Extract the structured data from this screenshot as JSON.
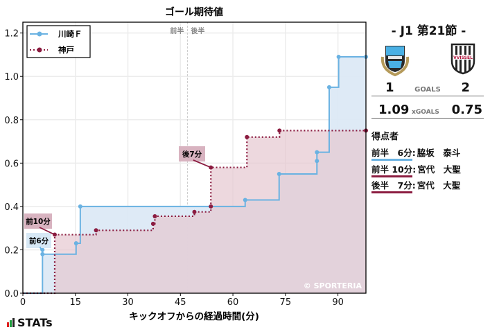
{
  "chart_data": {
    "type": "line",
    "subtype": "step",
    "title": "ゴール期待値",
    "xlabel": "キックオフからの経過時間(分)",
    "ylabel": "",
    "xlim": [
      0,
      98
    ],
    "ylim": [
      0,
      1.25
    ],
    "xticks": [
      0,
      15,
      30,
      45,
      60,
      75,
      90
    ],
    "yticks": [
      0.0,
      0.2,
      0.4,
      0.6,
      0.8,
      1.0,
      1.2
    ],
    "xtick_labels": [
      "0",
      "15",
      "30",
      "45",
      "60",
      "75",
      "90"
    ],
    "ytick_labels": [
      "0.0",
      "0.2",
      "0.4",
      "0.6",
      "0.8",
      "1.0",
      "1.2"
    ],
    "grid": true,
    "halftime_marker": {
      "x": 47,
      "left_label": "前半",
      "right_label": "後半"
    },
    "legend": {
      "position": "upper left",
      "entries": [
        "川崎Ｆ",
        "神戸"
      ]
    },
    "series": [
      {
        "name": "川崎Ｆ",
        "color": "#6ab2e2",
        "fill": "#dce9f6",
        "linestyle": "solid",
        "points": [
          [
            0,
            0
          ],
          [
            5.6,
            0.2
          ],
          [
            5.6,
            0.18
          ],
          [
            15.2,
            0.23
          ],
          [
            16.4,
            0.4
          ],
          [
            63.5,
            0.43
          ],
          [
            73.2,
            0.55
          ],
          [
            84.0,
            0.61
          ],
          [
            84.0,
            0.65
          ],
          [
            87.5,
            0.95
          ],
          [
            90.2,
            1.09
          ],
          [
            98,
            1.09
          ]
        ]
      },
      {
        "name": "神戸",
        "color": "#8b1c40",
        "fill": "#e5c8d0",
        "linestyle": "dotted",
        "points": [
          [
            0,
            0
          ],
          [
            9.1,
            0.27
          ],
          [
            20.9,
            0.29
          ],
          [
            37.2,
            0.32
          ],
          [
            37.7,
            0.355
          ],
          [
            49.0,
            0.375
          ],
          [
            53.7,
            0.4
          ],
          [
            53.7,
            0.58
          ],
          [
            64.0,
            0.72
          ],
          [
            73.3,
            0.75
          ],
          [
            98,
            0.75
          ]
        ]
      }
    ],
    "annotations": [
      {
        "text": "前6分",
        "x": 5.6,
        "y": 0.19,
        "team": "川崎Ｆ"
      },
      {
        "text": "前10分",
        "x": 9.1,
        "y": 0.27,
        "team": "神戸"
      },
      {
        "text": "後7分",
        "x": 53.7,
        "y": 0.58,
        "team": "神戸"
      }
    ],
    "watermark": "© SPORTERIA"
  },
  "match": {
    "title": "- J1 第21節 -",
    "home": {
      "name": "川崎Ｆ",
      "goals": "1",
      "xg": "1.09",
      "color": "#6ab2e2"
    },
    "away": {
      "name": "神戸",
      "goals": "2",
      "xg": "0.75",
      "color": "#8b1c40"
    },
    "goals_label": "GOALS",
    "xg_label": "xGOALS"
  },
  "scorers": {
    "title": "得点者",
    "items": [
      {
        "when": "前半　6分",
        "name": "脇坂　泰斗",
        "color": "#6ab2e2"
      },
      {
        "when": "前半 10分",
        "name": "宮代　大聖",
        "color": "#8b1c40"
      },
      {
        "when": "後半　7分",
        "name": "宮代　大聖",
        "color": "#8b1c40"
      }
    ]
  },
  "branding": {
    "logo_text": "STATs"
  }
}
